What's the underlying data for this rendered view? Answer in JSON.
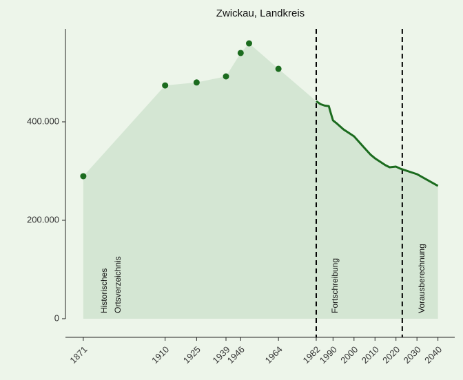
{
  "chart_data": {
    "type": "line",
    "title": "Zwickau, Landkreis",
    "series": [
      {
        "style": "points",
        "color": "#1b6b1e",
        "x": [
          1871,
          1910,
          1925,
          1939,
          1946,
          1950,
          1964
        ],
        "values": [
          289500,
          474000,
          480000,
          492300,
          539900,
          559400,
          507700
        ]
      },
      {
        "style": "line",
        "color": "#1b6b1e",
        "x": [
          1982,
          1984,
          1986,
          1988,
          1989,
          1990,
          1992,
          1995,
          2000,
          2005,
          2008,
          2010,
          2015,
          2017,
          2020,
          2022,
          2030,
          2040
        ],
        "values": [
          442000,
          436000,
          433000,
          432000,
          416800,
          402800,
          396000,
          384600,
          370600,
          346900,
          332900,
          325900,
          311900,
          307700,
          309000,
          305000,
          293700,
          269900
        ]
      }
    ],
    "area_color": "#d4e6d3",
    "vlines": [
      1982,
      2023
    ],
    "annotations": [
      [
        "Historisches",
        "Ortsverzeichnis"
      ],
      [
        "Fortschreibung"
      ],
      [
        "Vorausberechnung"
      ]
    ],
    "xlim": [
      1862.5,
      2048
    ],
    "xticks": [
      1871,
      1910,
      1925,
      1939,
      1946,
      1964,
      1982,
      1990,
      2000,
      2010,
      2020,
      2030,
      2040
    ],
    "ylim": [
      -37800,
      588800
    ],
    "yticks": [
      0,
      {
        "value": 200000,
        "label": "200.000"
      },
      {
        "value": 400000,
        "label": "400.000"
      }
    ]
  }
}
